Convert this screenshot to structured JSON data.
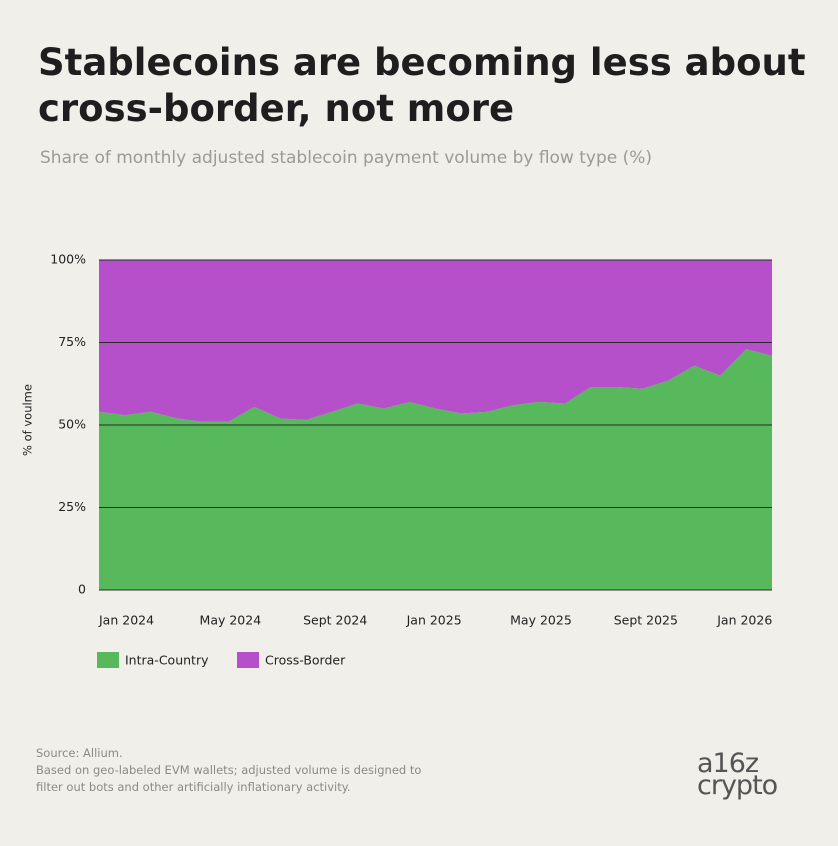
{
  "chart_data": {
    "type": "stacked_area",
    "title": "Stablecoins are becoming less about cross-border, not more",
    "subtitle": "Share of monthly adjusted stablecoin payment volume by flow type (%)",
    "y_label": "% of voulme",
    "categories": [
      "Jan 2024",
      null,
      null,
      null,
      "May 2024",
      null,
      null,
      null,
      "Sept 2024",
      null,
      null,
      null,
      "Jan 2025",
      null,
      null,
      null,
      "May 2025",
      null,
      null,
      null,
      "Sept  2025",
      null,
      null,
      null,
      "Jan 2026",
      null,
      null
    ],
    "series": [
      {
        "name": "Intra-Country",
        "color": "#58b85c",
        "values": [
          54,
          53,
          54,
          52,
          51,
          51,
          55.5,
          52,
          51.5,
          54,
          56.5,
          55,
          57,
          55,
          53.5,
          54,
          56,
          57,
          56.5,
          61.5,
          61.5,
          61,
          63.5,
          68,
          65,
          73,
          71
        ]
      },
      {
        "name": "Cross-Border",
        "color": "#b54fca",
        "values": [
          46,
          47,
          46,
          48,
          49,
          49,
          44.5,
          48,
          48.5,
          46,
          43.5,
          45,
          43,
          45,
          46.5,
          46,
          44,
          43,
          43.5,
          38.5,
          38.5,
          39,
          36.5,
          32,
          35,
          27,
          29
        ]
      }
    ],
    "ylim": [
      0,
      100
    ],
    "yticks": [
      0,
      {
        "value": 25,
        "label": "25%"
      },
      {
        "value": 50,
        "label": "50%"
      },
      {
        "value": 75,
        "label": "75%"
      },
      {
        "value": 100,
        "label": "100%"
      }
    ],
    "grid": true,
    "source": "Source: Allium.",
    "note": "Based on geo-labeled EVM wallets; adjusted volume is designed to filter out bots and other artificially inflationary activity.",
    "logo": [
      "a16z",
      "crypto"
    ]
  }
}
